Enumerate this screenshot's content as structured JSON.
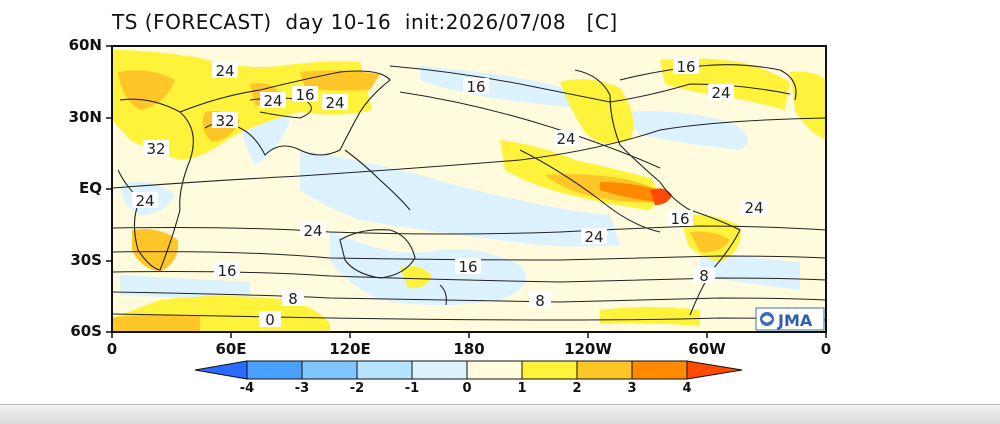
{
  "title": "TS (FORECAST)  day 10-16  init:2026/07/08   [C]",
  "lat_labels": [
    "60N",
    "30N",
    "EQ",
    "30S",
    "60S"
  ],
  "lon_labels": [
    "0",
    "60E",
    "120E",
    "180",
    "120W",
    "60W",
    "0"
  ],
  "colorbar": {
    "ticks": [
      "-4",
      "-3",
      "-2",
      "-1",
      "0",
      "1",
      "2",
      "3",
      "4"
    ],
    "colors": [
      "#2a6cff",
      "#4aa0ff",
      "#7fc6ff",
      "#b4e4ff",
      "#dcf3ff",
      "#fffbdc",
      "#fff23a",
      "#ffc629",
      "#ff8a00",
      "#ff4a00"
    ]
  },
  "contour_labels": [
    "24",
    "16",
    "24",
    "16",
    "24",
    "32",
    "32",
    "24",
    "24",
    "16",
    "24",
    "24",
    "16",
    "24",
    "16",
    "8",
    "0",
    "16",
    "8",
    "8"
  ],
  "logo": "JMA"
}
